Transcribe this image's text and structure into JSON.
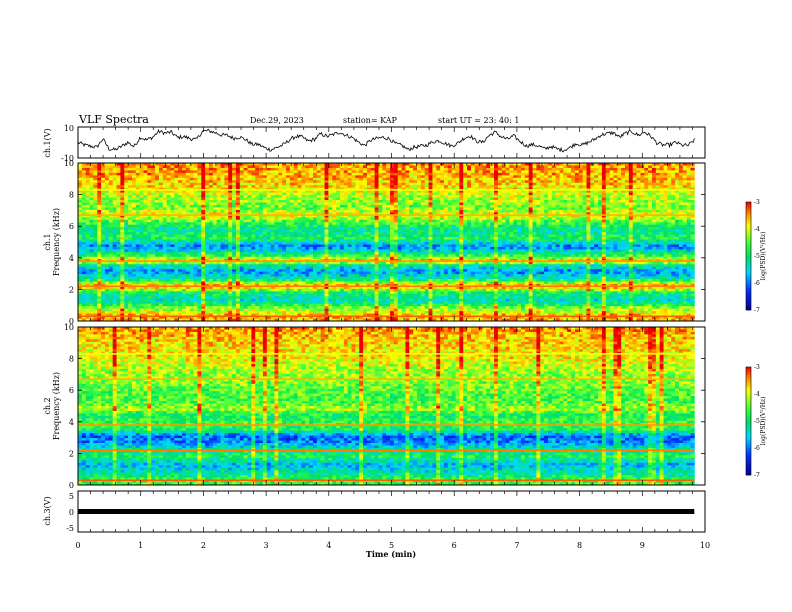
{
  "header": {
    "title": "VLF Spectra",
    "date": "Dec.29, 2023",
    "station": "station= KAP",
    "start": "start  UT  =   23: 40: 1"
  },
  "chart_data": [
    {
      "type": "line",
      "ylabel": "ch.1(V)",
      "ylim": [
        -10,
        10
      ],
      "yticks": [
        "10",
        "-10"
      ],
      "xlim": [
        0,
        10
      ],
      "color": "#000000",
      "description_values": [
        0,
        -1.6,
        -2.4,
        -3.1,
        2.4,
        -4.2,
        -4.7,
        -2.5,
        0.1,
        -2.6,
        3.4,
        1.7,
        3.4,
        7.2,
        6.1,
        6.6,
        3.2,
        3.8,
        2.5,
        1.8,
        7.3,
        7.6,
        6.4,
        4.9,
        4.6,
        2.7,
        3.6,
        1.7,
        -1.3,
        -1.2,
        -3.5,
        -4.7,
        -3.1,
        -1.4,
        1.7,
        4.0,
        3.5,
        0.9,
        2.1,
        5.6,
        3.9,
        5.2,
        6.6,
        4.8,
        3.3,
        0.4,
        -2.0,
        1.4,
        2.6,
        3.3,
        2.4,
        -0.8,
        -1.9,
        -4.6,
        -3.1,
        -2.4,
        -1.7,
        0.4,
        1.2,
        -0.6,
        -2.3,
        -0.4,
        2.8,
        4.3,
        0.8,
        0.1,
        4.5,
        6.7,
        3.7,
        2.1,
        4.3,
        0.7,
        -2.2,
        -1.4,
        -2.2,
        -4.2,
        -2.5,
        -4.3,
        -4.9,
        -3.3,
        -0.6,
        -1.7,
        0.1,
        2.1,
        4.9,
        5.8,
        6.3,
        3.4,
        6.1,
        7.0,
        4.6,
        6.7,
        4.1,
        -0.4,
        -1.6,
        -1.6,
        0.1,
        -1.7,
        -1.9,
        1.5
      ]
    },
    {
      "type": "heatmap",
      "ylabel": "ch.1",
      "ylabel2": "Frequency  (kHz)",
      "ylim": [
        0,
        10
      ],
      "yticks": [
        "0",
        "2",
        "4",
        "6",
        "8",
        "10"
      ],
      "xlim": [
        0,
        10
      ],
      "data_end_min": 9.83,
      "colorbar": {
        "label": "log(PSD)(V²/Hz)",
        "min": -7,
        "max": -3,
        "ticks": [
          "-3",
          "-4",
          "-5",
          "-6",
          "-7"
        ]
      },
      "band_profile_log_psd": [
        [
          0.3,
          -3.6
        ],
        [
          0.8,
          -4.3
        ],
        [
          1.3,
          -5.4
        ],
        [
          1.8,
          -4.9
        ],
        [
          2.2,
          -3.5
        ],
        [
          2.7,
          -5.2
        ],
        [
          3.1,
          -5.9
        ],
        [
          3.5,
          -5.3
        ],
        [
          3.8,
          -3.6
        ],
        [
          4.2,
          -4.9
        ],
        [
          4.7,
          -6.0
        ],
        [
          5.2,
          -4.8
        ],
        [
          5.8,
          -5.2
        ],
        [
          6.3,
          -4.5
        ],
        [
          6.7,
          -3.9
        ],
        [
          7.2,
          -4.4
        ],
        [
          8.0,
          -4.1
        ],
        [
          8.5,
          -3.8
        ],
        [
          9.2,
          -3.6
        ],
        [
          9.8,
          -3.5
        ]
      ]
    },
    {
      "type": "heatmap",
      "ylabel": "ch.2",
      "ylabel2": "Frequency  (kHz)",
      "ylim": [
        0,
        10
      ],
      "yticks": [
        "0",
        "2",
        "4",
        "6",
        "8",
        "10"
      ],
      "xlim": [
        0,
        10
      ],
      "data_end_min": 9.83,
      "colorbar": {
        "label": "log(PSD)(V²/Hz)",
        "min": -7,
        "max": -3,
        "ticks": [
          "-3",
          "-4",
          "-5",
          "-6",
          "-7"
        ]
      },
      "band_profile_log_psd": [
        [
          0.3,
          -4.6
        ],
        [
          0.8,
          -5.3
        ],
        [
          1.3,
          -5.7
        ],
        [
          1.8,
          -4.8
        ],
        [
          2.2,
          -5.2
        ],
        [
          2.7,
          -5.9
        ],
        [
          3.1,
          -6.1
        ],
        [
          3.5,
          -4.9
        ],
        [
          3.9,
          -4.6
        ],
        [
          4.4,
          -4.9
        ],
        [
          4.8,
          -4.2
        ],
        [
          5.3,
          -4.6
        ],
        [
          6.0,
          -4.5
        ],
        [
          6.6,
          -4.3
        ],
        [
          7.2,
          -4.2
        ],
        [
          8.0,
          -3.9
        ],
        [
          8.6,
          -3.8
        ],
        [
          9.3,
          -3.7
        ],
        [
          9.8,
          -3.5
        ]
      ]
    },
    {
      "type": "line",
      "ylabel": "ch.3(V)",
      "ylim": [
        -5,
        5
      ],
      "yticks": [
        "5",
        "0",
        "-5"
      ],
      "xlim": [
        0,
        10
      ],
      "color": "#000000",
      "value": 0,
      "data_end_min": 9.83
    }
  ],
  "xaxis": {
    "label": "Time  (min)",
    "ticks": [
      "0",
      "1",
      "2",
      "3",
      "4",
      "5",
      "6",
      "7",
      "8",
      "9",
      "10"
    ]
  }
}
